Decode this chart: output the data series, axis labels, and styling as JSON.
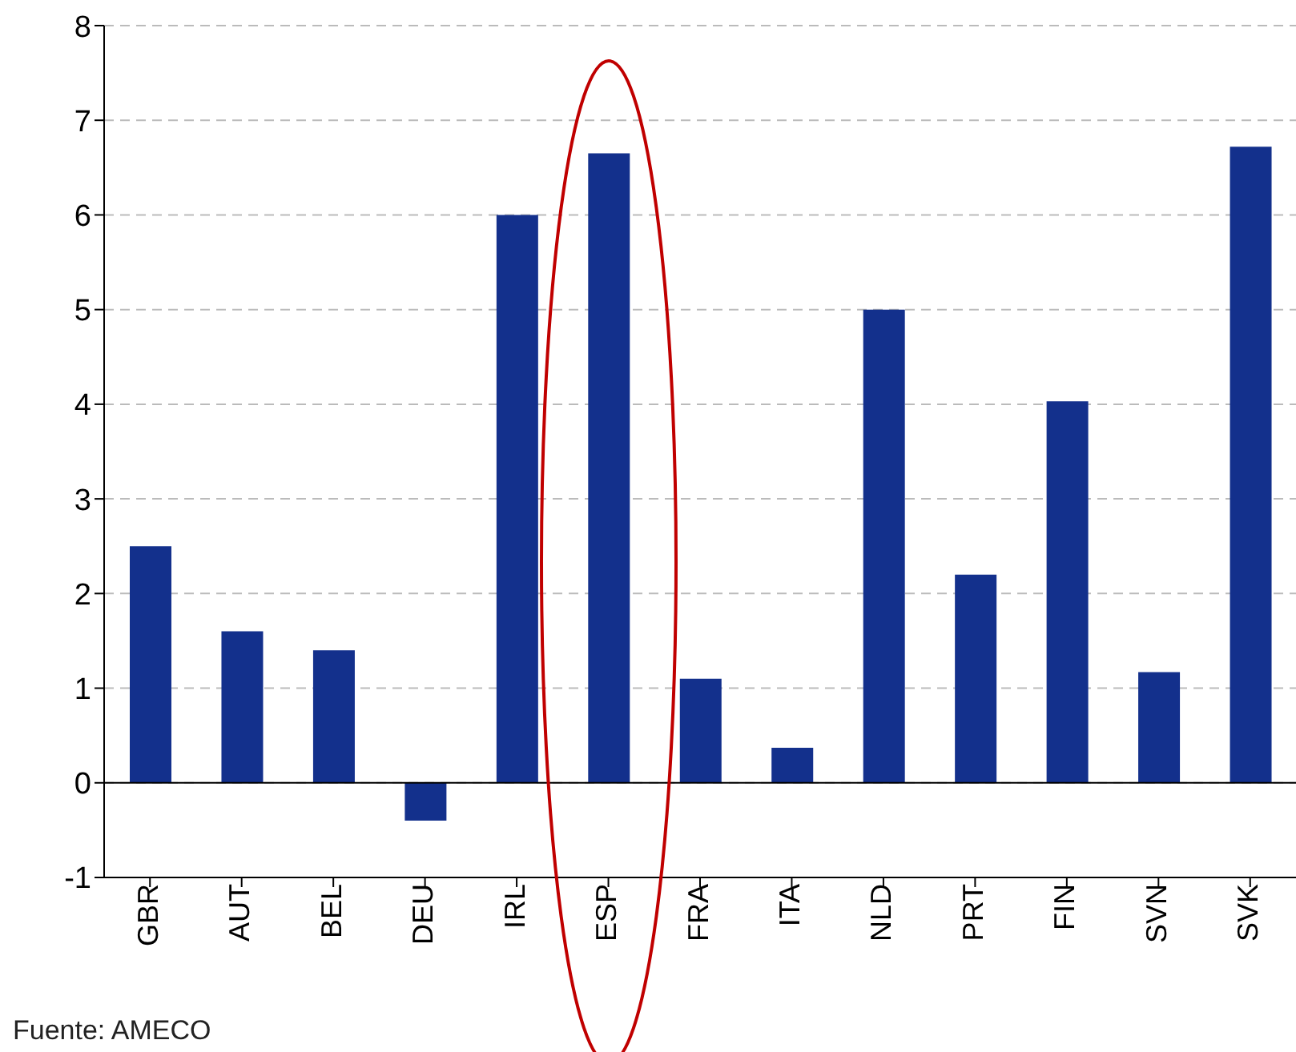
{
  "chart_data": {
    "type": "bar",
    "categories": [
      "GBR",
      "AUT",
      "BEL",
      "DEU",
      "IRL",
      "ESP",
      "FRA",
      "ITA",
      "NLD",
      "PRT",
      "FIN",
      "SVN",
      "SVK"
    ],
    "values": [
      2.5,
      1.6,
      1.4,
      -0.4,
      6.0,
      6.65,
      1.1,
      0.37,
      5.0,
      2.2,
      4.03,
      1.17,
      6.72
    ],
    "color": "#13308c",
    "ylim": [
      -1,
      8
    ],
    "yticks": [
      -1,
      0,
      1,
      2,
      3,
      4,
      5,
      6,
      7,
      8
    ],
    "grid": "y",
    "annotations": [
      "Fuente: AMECO"
    ]
  }
}
